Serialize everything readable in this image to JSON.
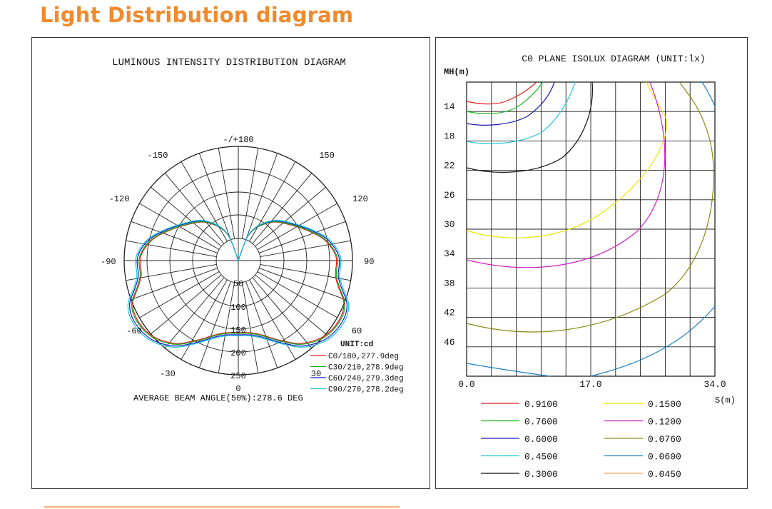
{
  "page": {
    "title": "Light Distribution diagram"
  },
  "polar": {
    "title": "LUMINOUS INTENSITY DISTRIBUTION DIAGRAM",
    "angle_labels": [
      "-/+180",
      "150",
      "120",
      "90",
      "60",
      "30",
      "0",
      "-30",
      "-60",
      "-90",
      "-120",
      "-150"
    ],
    "radial_labels": [
      "50",
      "100",
      "150",
      "200",
      "250"
    ],
    "unit_label": "UNIT:cd",
    "beam_angle_text": "AVERAGE BEAM ANGLE(50%):278.6 DEG",
    "legend": [
      {
        "label": "C0/180,277.9deg",
        "color": "#e02020"
      },
      {
        "label": "C30/210,278.9deg",
        "color": "#14a814"
      },
      {
        "label": "C60/240,279.3deg",
        "color": "#1a1ad0"
      },
      {
        "label": "C90/270,278.2deg",
        "color": "#18c8d8"
      }
    ]
  },
  "chart_data": {
    "type": "contour",
    "title": "C0 PLANE ISOLUX DIAGRAM (UNIT:lx)",
    "ylabel": "MH(m)",
    "xlabel": "S(m)",
    "x_ticks": [
      "0.0",
      "17.0",
      "34.0"
    ],
    "y_ticks": [
      "14",
      "18",
      "22",
      "26",
      "30",
      "34",
      "38",
      "42",
      "46"
    ],
    "grid": true,
    "legend": [
      {
        "value": "0.9100",
        "color": "#e02020"
      },
      {
        "value": "0.1500",
        "color": "#e8e800"
      },
      {
        "value": "0.7600",
        "color": "#14b814"
      },
      {
        "value": "0.1200",
        "color": "#d020c8"
      },
      {
        "value": "0.6000",
        "color": "#1a1ab0"
      },
      {
        "value": "0.0760",
        "color": "#8a8a10"
      },
      {
        "value": "0.4500",
        "color": "#20c8d8"
      },
      {
        "value": "0.0600",
        "color": "#2080c0"
      },
      {
        "value": "0.3000",
        "color": "#111111"
      },
      {
        "value": "0.0450",
        "color": "#e8a070"
      }
    ]
  }
}
